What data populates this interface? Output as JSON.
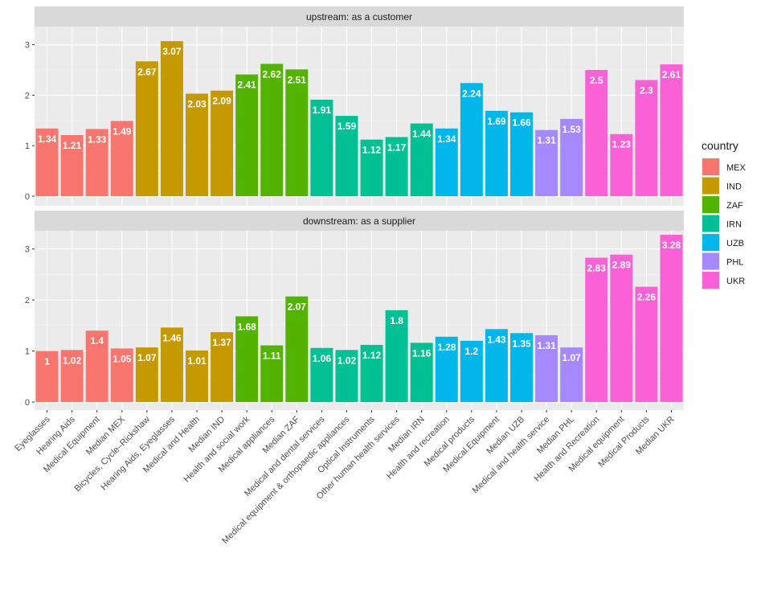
{
  "chart_data": {
    "type": "bar",
    "categories": [
      "Eyeglasses",
      "Hearing Aids",
      "Medical Equipment",
      "Median MEX",
      "Bicycles, Cycle–Rickshaw",
      "Hearing Aids, Eyeglasses",
      "Medical and Health",
      "Median IND",
      "Health and social work",
      "Medical appliances",
      "Median ZAF",
      "Medical and dental services",
      "Medical equipment & orthopaedic appliances",
      "Optical Instruments",
      "Other human health services",
      "Median IRN",
      "Health and recreation",
      "Medical products",
      "Medical.Equipment",
      "Median UZB",
      "Medical and health service",
      "Median PHL",
      "Health and Recreation",
      "Medical equipment",
      "Medical Products",
      "Median UKR"
    ],
    "country": [
      "MEX",
      "MEX",
      "MEX",
      "MEX",
      "IND",
      "IND",
      "IND",
      "IND",
      "ZAF",
      "ZAF",
      "ZAF",
      "IRN",
      "IRN",
      "IRN",
      "IRN",
      "IRN",
      "UZB",
      "UZB",
      "UZB",
      "UZB",
      "PHL",
      "PHL",
      "UKR",
      "UKR",
      "UKR",
      "UKR"
    ],
    "panels": [
      {
        "title": "upstream: as a customer",
        "values": [
          1.34,
          1.21,
          1.33,
          1.49,
          2.67,
          3.07,
          2.03,
          2.09,
          2.41,
          2.62,
          2.51,
          1.91,
          1.59,
          1.12,
          1.17,
          1.44,
          1.34,
          2.24,
          1.69,
          1.66,
          1.31,
          1.53,
          2.5,
          1.23,
          2.3,
          2.61
        ]
      },
      {
        "title": "downstream: as a supplier",
        "values": [
          1,
          1.02,
          1.4,
          1.05,
          1.07,
          1.46,
          1.01,
          1.37,
          1.68,
          1.11,
          2.07,
          1.06,
          1.02,
          1.12,
          1.8,
          1.16,
          1.28,
          1.2,
          1.43,
          1.35,
          1.31,
          1.07,
          2.83,
          2.89,
          2.26,
          3.28
        ]
      }
    ],
    "ylim": [
      0,
      3.4
    ],
    "yticks": [
      0,
      1,
      2,
      3
    ],
    "grid": true,
    "legend": {
      "title": "country",
      "placement": "right",
      "entries": [
        {
          "name": "MEX",
          "color": "#F8766D"
        },
        {
          "name": "IND",
          "color": "#C49A00"
        },
        {
          "name": "ZAF",
          "color": "#53B400"
        },
        {
          "name": "IRN",
          "color": "#00C094"
        },
        {
          "name": "UZB",
          "color": "#00B6EB"
        },
        {
          "name": "PHL",
          "color": "#A58AFF"
        },
        {
          "name": "UKR",
          "color": "#FB61D7"
        }
      ]
    }
  }
}
